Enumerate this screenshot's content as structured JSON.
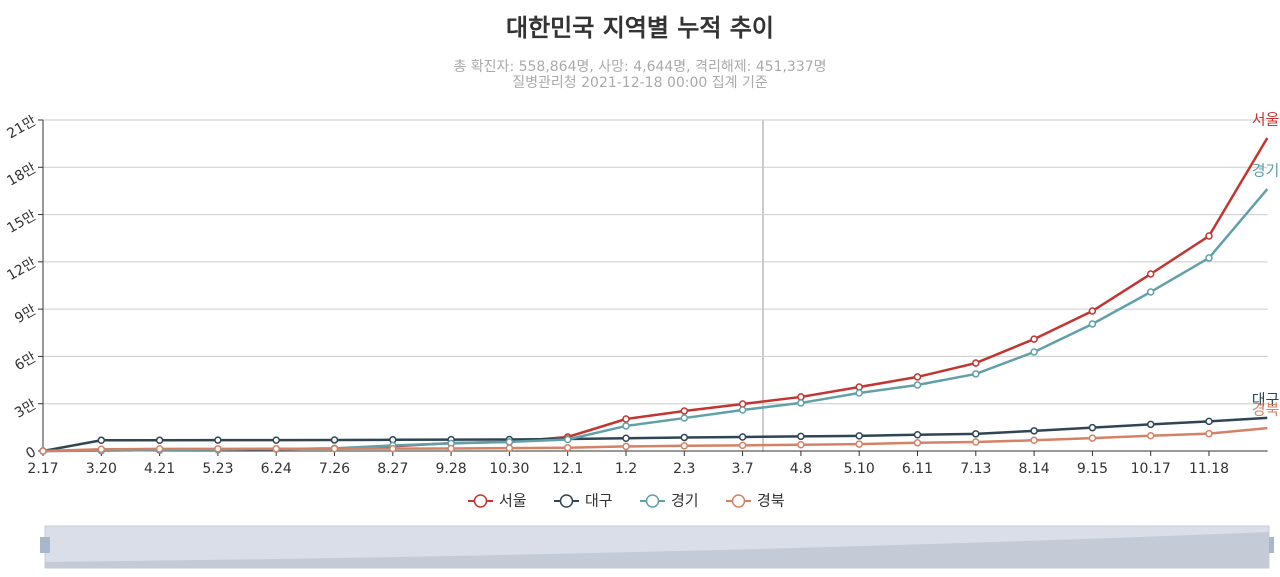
{
  "chart_data": {
    "type": "line",
    "title": "대한민국 지역별 누적 추이",
    "subtitle": [
      "총 확진자: 558,864명, 사망: 4,644명, 격리해제: 451,337명",
      "질병관리청 2021-12-18 00:00 집계 기준"
    ],
    "categories": [
      "2.17",
      "3.20",
      "4.21",
      "5.23",
      "6.24",
      "7.26",
      "8.27",
      "9.28",
      "10.30",
      "12.1",
      "1.2",
      "2.3",
      "3.7",
      "4.8",
      "5.10",
      "6.11",
      "7.13",
      "8.14",
      "9.15",
      "10.17",
      "11.18",
      null
    ],
    "series": [
      {
        "name": "서울",
        "color": "#c23531",
        "values": [
          0,
          300,
          600,
          800,
          1300,
          1600,
          3000,
          5000,
          5800,
          8900,
          20300,
          25400,
          29800,
          34300,
          40600,
          47000,
          55800,
          71000,
          88800,
          112300,
          136400,
          198600
        ]
      },
      {
        "name": "대구",
        "color": "#2f4554",
        "values": [
          0,
          6800,
          6800,
          6900,
          6900,
          7000,
          7100,
          7200,
          7300,
          7600,
          8100,
          8600,
          8900,
          9300,
          9600,
          10300,
          10900,
          12800,
          14800,
          16900,
          18800,
          21000
        ]
      },
      {
        "name": "경기",
        "color": "#61a0a8",
        "values": [
          0,
          200,
          700,
          900,
          1300,
          1700,
          3500,
          4800,
          5800,
          7300,
          15900,
          20900,
          26000,
          30500,
          36800,
          41900,
          48900,
          62800,
          80600,
          100900,
          122500,
          166200
        ]
      },
      {
        "name": "경북",
        "color": "#d48265",
        "values": [
          0,
          1100,
          1350,
          1380,
          1400,
          1450,
          1520,
          1600,
          1800,
          2100,
          2900,
          3300,
          3600,
          4000,
          4400,
          5200,
          5700,
          6800,
          8200,
          9700,
          11000,
          14500
        ]
      }
    ],
    "ylim": [
      0,
      210000
    ],
    "yticks": [
      0,
      {
        "value": 30000,
        "label": "3만"
      },
      {
        "value": 60000,
        "label": "6만"
      },
      {
        "value": 90000,
        "label": "9만"
      },
      {
        "value": 120000,
        "label": "12만"
      },
      {
        "value": 150000,
        "label": "15만"
      },
      {
        "value": 180000,
        "label": "18만"
      },
      {
        "value": 210000,
        "label": "21만"
      }
    ],
    "grid": true,
    "legend": "bottom"
  }
}
